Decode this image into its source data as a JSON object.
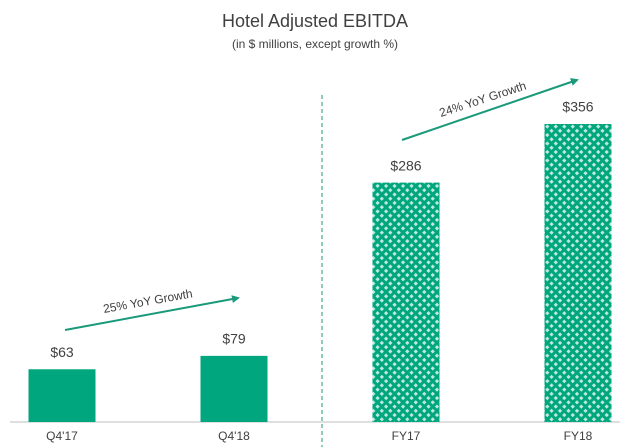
{
  "chart_data": {
    "type": "bar",
    "title": "Hotel Adjusted EBITDA",
    "subtitle": "(in $ millions, except growth %)",
    "categories": [
      "Q4'17",
      "Q4'18",
      "FY17",
      "FY18"
    ],
    "values": [
      63,
      79,
      286,
      356
    ],
    "value_labels": [
      "$63",
      "$79",
      "$286",
      "$356"
    ],
    "color": "#00a67e",
    "patterned": [
      false,
      false,
      true,
      true
    ],
    "annotations": [
      "25% YoY Growth",
      "24% YoY Growth"
    ]
  }
}
